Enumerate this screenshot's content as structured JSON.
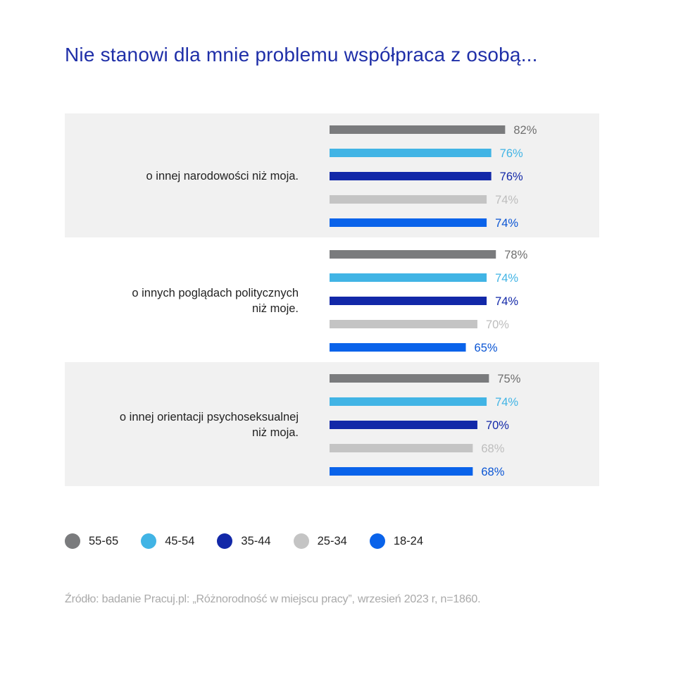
{
  "title": "Nie stanowi dla mnie problemu współpraca z osobą...",
  "source": "Źródło: badanie Pracuj.pl: „Różnorodność w miejscu pracy”, wrzesień 2023 r, n=1860.",
  "chart_data": {
    "type": "bar",
    "orientation": "horizontal",
    "title": "Nie stanowi dla mnie problemu współpraca z osobą...",
    "categories": [
      [
        "o innej narodowości niż moja."
      ],
      [
        "o innych poglądach politycznych",
        "niż moje."
      ],
      [
        "o innej orientacji psychoseksualnej",
        "niż moja."
      ]
    ],
    "series": [
      {
        "name": "55-65",
        "color": "#7a7b7d",
        "label_color": "#6f6f6f",
        "values": [
          82,
          78,
          75
        ]
      },
      {
        "name": "45-54",
        "color": "#41b4e5",
        "label_color": "#41b4e5",
        "values": [
          76,
          74,
          74
        ]
      },
      {
        "name": "35-44",
        "color": "#1228a8",
        "label_color": "#1228a8",
        "values": [
          76,
          74,
          70
        ]
      },
      {
        "name": "25-34",
        "color": "#c4c4c4",
        "label_color": "#bdbdbd",
        "values": [
          74,
          70,
          68
        ]
      },
      {
        "name": "18-24",
        "color": "#0a63ea",
        "label_color": "#0a55d4",
        "values": [
          74,
          65,
          68
        ]
      }
    ],
    "value_suffix": "%",
    "xlabel": "",
    "ylabel": "",
    "xlim": [
      0,
      100
    ],
    "legend_position": "bottom-left"
  }
}
